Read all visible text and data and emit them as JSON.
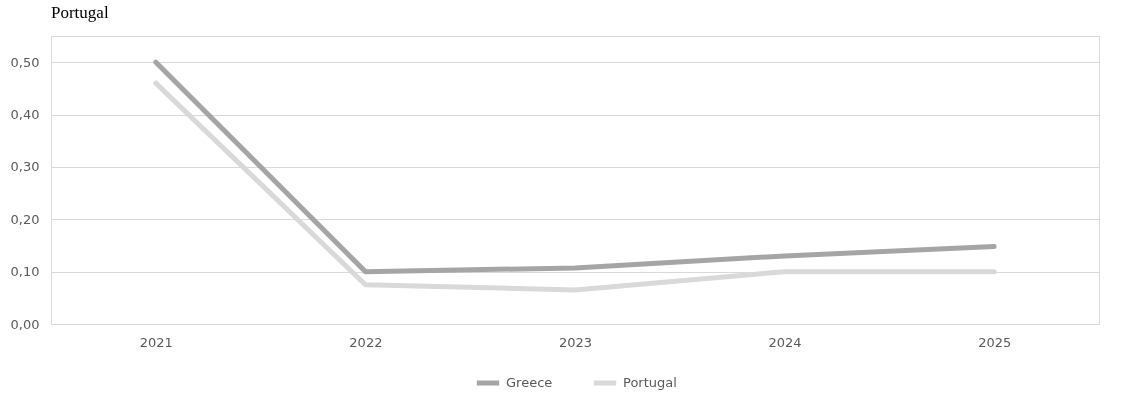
{
  "chart_data": {
    "type": "line",
    "title": "Portugal",
    "categories": [
      "2021",
      "2022",
      "2023",
      "2024",
      "2025"
    ],
    "series": [
      {
        "name": "Greece",
        "color": "#a5a5a5",
        "values": [
          0.5,
          0.1,
          0.107,
          0.13,
          0.148
        ]
      },
      {
        "name": "Portugal",
        "color": "#d9d9d9",
        "values": [
          0.46,
          0.075,
          0.065,
          0.1,
          0.1
        ]
      }
    ],
    "ylim": [
      0,
      0.55
    ],
    "yticks": [
      {
        "value": 0,
        "label": "0,00"
      },
      {
        "value": 0.1,
        "label": "0,10"
      },
      {
        "value": 0.2,
        "label": "0,20"
      },
      {
        "value": 0.3,
        "label": "0,30"
      },
      {
        "value": 0.4,
        "label": "0,40"
      },
      {
        "value": 0.5,
        "label": "0,50"
      }
    ],
    "grid": "y",
    "legend": "bottom",
    "marker": "none",
    "line_style": "solid"
  }
}
